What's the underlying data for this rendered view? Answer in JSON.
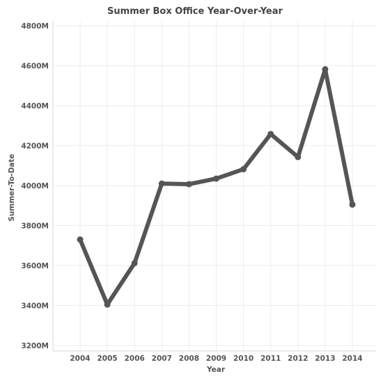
{
  "chart_data": {
    "type": "line",
    "title": "Summer Box Office Year-Over-Year",
    "xlabel": "Year",
    "ylabel": "Summer-To-Date",
    "categories": [
      "2004",
      "2005",
      "2006",
      "2007",
      "2008",
      "2009",
      "2010",
      "2011",
      "2012",
      "2013",
      "2014"
    ],
    "series": [
      {
        "values": [
          3730,
          3405,
          3612,
          4010,
          4007,
          4035,
          4082,
          4258,
          4143,
          4582,
          3905
        ]
      }
    ],
    "y_unit": "M",
    "ylim": [
      3200,
      4800
    ],
    "yticks": [
      3200,
      3400,
      3600,
      3800,
      4000,
      4200,
      4400,
      4600,
      4800
    ],
    "ytick_labels": [
      "3200M",
      "3400M",
      "3600M",
      "3800M",
      "4000M",
      "4200M",
      "4400M",
      "4600M",
      "4800M"
    ],
    "grid": true,
    "line_color": "#555555",
    "marker": "circle"
  }
}
